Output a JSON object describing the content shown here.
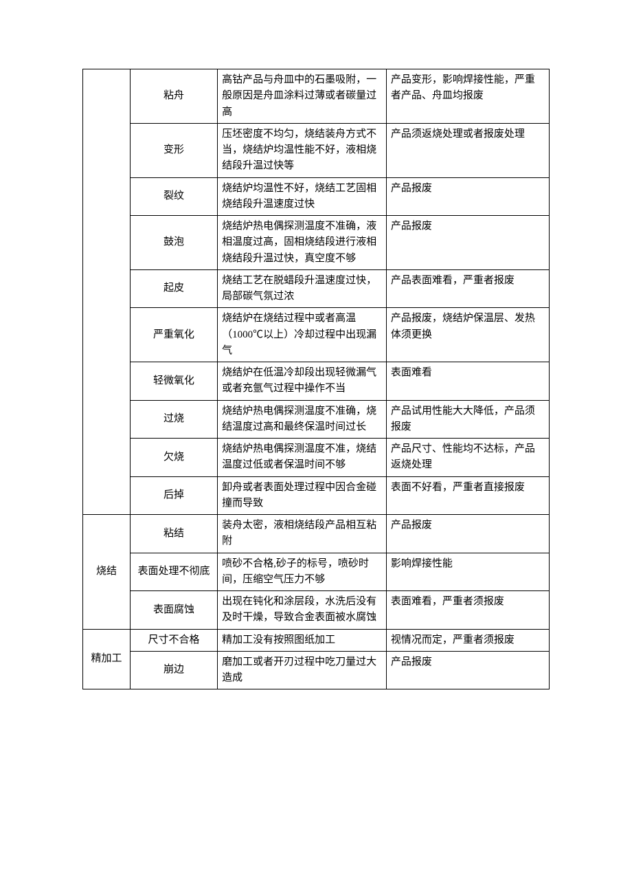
{
  "categories": {
    "cat_blank": "",
    "cat_sinter": "烧结",
    "cat_finish": "精加工"
  },
  "rows": [
    {
      "defect": "粘舟",
      "cause": "高钴产品与舟皿中的石墨吸附，一般原因是舟皿涂料过薄或者碳量过高",
      "effect": "产品变形，影响焊接性能，严重者产品、舟皿均报废"
    },
    {
      "defect": "变形",
      "cause": "压坯密度不均匀，烧结装舟方式不当，烧结炉均温性能不好，液相烧结段升温过快等",
      "effect": "产品须返烧处理或者报废处理"
    },
    {
      "defect": "裂纹",
      "cause": "烧结炉均温性不好，烧结工艺固相烧结段升温速度过快",
      "effect": "产品报废"
    },
    {
      "defect": "鼓泡",
      "cause": "烧结炉热电偶探测温度不准确，液相温度过高，固相烧结段进行液相烧结段升温过快，真空度不够",
      "effect": "产品报废"
    },
    {
      "defect": "起皮",
      "cause": "烧结工艺在脱蜡段升温速度过快，局部碳气氛过浓",
      "effect": "产品表面难看，严重者报废"
    },
    {
      "defect": "严重氧化",
      "cause": "烧结炉在烧结过程中或者高温（1000℃以上）冷却过程中出现漏气",
      "effect": "产品报废，烧结炉保温层、发热体须更换"
    },
    {
      "defect": "轻微氧化",
      "cause": "烧结炉在低温冷却段出现轻微漏气或者充氩气过程中操作不当",
      "effect": "表面难看"
    },
    {
      "defect": "过烧",
      "cause": "烧结炉热电偶探测温度不准确，烧结温度过高和最终保温时间过长",
      "effect": "产品试用性能大大降低，产品须报废"
    },
    {
      "defect": "欠烧",
      "cause": "烧结炉热电偶探测温度不准，烧结温度过低或者保温时间不够",
      "effect": "产品尺寸、性能均不达标，产品返烧处理"
    },
    {
      "defect": "后掉",
      "cause": "卸舟或者表面处理过程中因合金碰撞而导致",
      "effect": "表面不好看，严重者直接报废"
    },
    {
      "defect": "粘结",
      "cause": "装舟太密，液相烧结段产品相互粘附",
      "effect": "产品报废"
    },
    {
      "defect": "表面处理不彻底",
      "cause": "喷砂不合格,砂子的标号，喷砂时间，压缩空气压力不够",
      "effect": "影响焊接性能"
    },
    {
      "defect": "表面腐蚀",
      "cause": "出现在钝化和涂层段，水洗后没有及时干燥，导致合金表面被水腐蚀",
      "effect": "表面难看，严重者须报废"
    },
    {
      "defect": "尺寸不合格",
      "cause": "精加工没有按照图纸加工",
      "effect": "视情况而定，严重者须报废"
    },
    {
      "defect": "崩边",
      "cause": "磨加工或者开刃过程中吃刀量过大造成",
      "effect": "产品报废"
    }
  ]
}
